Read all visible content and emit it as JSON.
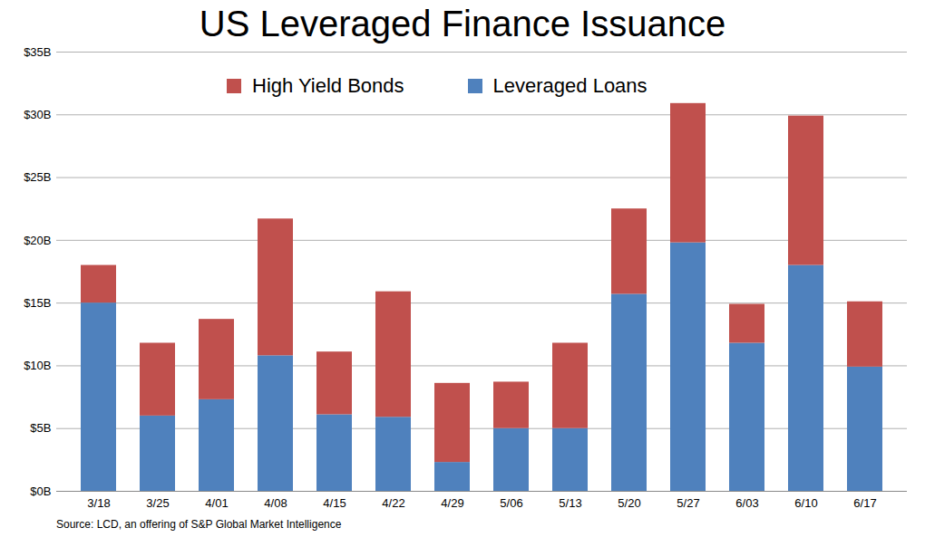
{
  "chart_data": {
    "type": "bar",
    "stacked": true,
    "title": "US Leveraged Finance Issuance",
    "source": "Source: LCD, an offering of S&P Global Market Intelligence",
    "categories": [
      "3/18",
      "3/25",
      "4/01",
      "4/08",
      "4/15",
      "4/22",
      "4/29",
      "5/06",
      "5/13",
      "5/20",
      "5/27",
      "6/03",
      "6/10",
      "6/17"
    ],
    "series": [
      {
        "name": "Leveraged Loans",
        "color": "#4f81bd",
        "values": [
          15.0,
          6.0,
          7.3,
          10.8,
          6.1,
          5.9,
          2.3,
          5.0,
          5.0,
          15.7,
          19.8,
          11.8,
          18.0,
          9.9
        ]
      },
      {
        "name": "High Yield Bonds",
        "color": "#c0504d",
        "values": [
          3.0,
          5.8,
          6.4,
          10.9,
          5.0,
          10.0,
          6.3,
          3.7,
          6.8,
          6.8,
          11.1,
          3.1,
          11.9,
          5.2
        ]
      }
    ],
    "ylim": [
      0,
      35
    ],
    "yticks": [
      {
        "value": 0,
        "label": "$0B"
      },
      {
        "value": 5,
        "label": "$5B"
      },
      {
        "value": 10,
        "label": "$10B"
      },
      {
        "value": 15,
        "label": "$15B"
      },
      {
        "value": 20,
        "label": "$20B"
      },
      {
        "value": 25,
        "label": "$25B"
      },
      {
        "value": 30,
        "label": "$30B"
      },
      {
        "value": 35,
        "label": "$35B"
      }
    ],
    "grid": true,
    "legend": "top"
  }
}
